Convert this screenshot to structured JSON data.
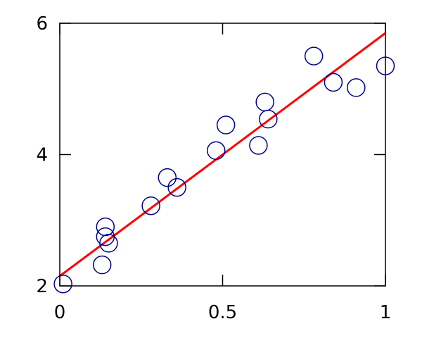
{
  "chart_data": {
    "type": "scatter",
    "title": "",
    "xlabel": "",
    "ylabel": "",
    "xlim": [
      0,
      1
    ],
    "ylim": [
      2,
      6
    ],
    "grid": false,
    "x_ticks": [
      "0",
      "0.5",
      "1"
    ],
    "x_tick_values": [
      0,
      0.5,
      1
    ],
    "y_ticks": [
      "2",
      "4",
      "6"
    ],
    "y_tick_values": [
      2,
      4,
      6
    ],
    "series": [
      {
        "kind": "points",
        "marker": "open-circle",
        "color": "#00008b",
        "x": [
          0.01,
          0.13,
          0.14,
          0.14,
          0.15,
          0.28,
          0.33,
          0.36,
          0.48,
          0.51,
          0.61,
          0.63,
          0.64,
          0.78,
          0.84,
          0.91,
          1.0
        ],
        "y": [
          2.03,
          2.32,
          2.9,
          2.75,
          2.65,
          3.22,
          3.65,
          3.5,
          4.06,
          4.45,
          4.14,
          4.8,
          4.54,
          5.5,
          5.1,
          5.02,
          5.35
        ]
      },
      {
        "kind": "line",
        "color": "#ff0000",
        "x": [
          0,
          1
        ],
        "y": [
          2.15,
          5.85
        ]
      }
    ]
  }
}
